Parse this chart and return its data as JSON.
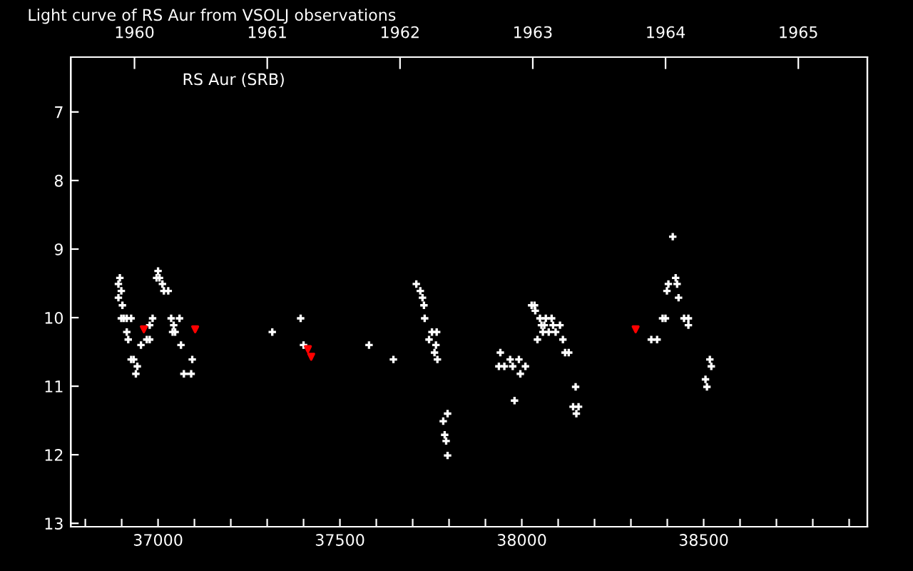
{
  "chart_data": {
    "type": "scatter",
    "title": "Light curve of RS Aur from VSOLJ observations",
    "annotations": [
      "RS Aur (SRB)"
    ],
    "xlim": [
      36760,
      38950
    ],
    "xticks": [
      {
        "value": 36800,
        "label": null
      },
      {
        "value": 36900,
        "label": null
      },
      37000,
      {
        "value": 37100,
        "label": null
      },
      {
        "value": 37200,
        "label": null
      },
      {
        "value": 37300,
        "label": null
      },
      {
        "value": 37400,
        "label": null
      },
      37500,
      {
        "value": 37600,
        "label": null
      },
      {
        "value": 37700,
        "label": null
      },
      {
        "value": 37800,
        "label": null
      },
      {
        "value": 37900,
        "label": null
      },
      38000,
      {
        "value": 38100,
        "label": null
      },
      {
        "value": 38200,
        "label": null
      },
      {
        "value": 38300,
        "label": null
      },
      {
        "value": 38400,
        "label": null
      },
      38500,
      {
        "value": 38600,
        "label": null
      },
      {
        "value": 38700,
        "label": null
      },
      {
        "value": 38800,
        "label": null
      },
      {
        "value": 38900,
        "label": null
      }
    ],
    "x2lim": [
      1959.52,
      1965.52
    ],
    "x2ticks": [
      1960,
      1961,
      1962,
      1963,
      1964,
      1965
    ],
    "ylim": [
      13.05,
      6.2
    ],
    "yticks": [
      7,
      8,
      9,
      10,
      11,
      12,
      13
    ],
    "grid": false,
    "series": [
      {
        "color": "#ffffff",
        "marker": "cross",
        "x": [
          36895,
          36891,
          36899,
          36891,
          36902,
          36899,
          36906,
          36914,
          36926,
          36914,
          36918,
          36926,
          36933,
          36943,
          36939,
          36953,
          36969,
          36977,
          36977,
          36985,
          37000,
          36996,
          37004,
          37012,
          37016,
          37028,
          37036,
          37059,
          37043,
          37040,
          37047,
          37063,
          37094,
          37071,
          37091,
          37392,
          37314,
          37400,
          37580,
          37647,
          37710,
          37721,
          37727,
          37731,
          37733,
          37753,
          37766,
          37745,
          37764,
          37760,
          37768,
          37796,
          37784,
          37788,
          37792,
          37796,
          38027,
          38035,
          38037,
          38050,
          38066,
          38082,
          38054,
          38062,
          38086,
          38105,
          38058,
          38074,
          38093,
          38043,
          38113,
          38119,
          38129,
          37941,
          37937,
          37952,
          37968,
          37992,
          37975,
          38010,
          37996,
          37980,
          38148,
          38141,
          38156,
          38150,
          38356,
          38372,
          38387,
          38395,
          38399,
          38403,
          38423,
          38427,
          38431,
          38415,
          38446,
          38458,
          38458,
          38517,
          38521,
          38505,
          38509
        ],
        "values": [
          9.42,
          9.51,
          9.61,
          9.71,
          9.82,
          10.01,
          10.01,
          10.01,
          10.01,
          10.21,
          10.32,
          10.61,
          10.61,
          10.71,
          10.82,
          10.4,
          10.32,
          10.32,
          10.11,
          10.01,
          9.32,
          9.42,
          9.42,
          9.51,
          9.61,
          9.61,
          10.01,
          10.01,
          10.11,
          10.21,
          10.21,
          10.4,
          10.61,
          10.82,
          10.82,
          10.01,
          10.21,
          10.4,
          10.4,
          10.61,
          9.51,
          9.61,
          9.71,
          9.82,
          10.01,
          10.21,
          10.21,
          10.32,
          10.4,
          10.51,
          10.61,
          11.4,
          11.51,
          11.71,
          11.8,
          12.01,
          9.82,
          9.82,
          9.9,
          10.01,
          10.01,
          10.01,
          10.11,
          10.11,
          10.11,
          10.11,
          10.21,
          10.21,
          10.21,
          10.32,
          10.32,
          10.51,
          10.51,
          10.51,
          10.71,
          10.71,
          10.61,
          10.61,
          10.71,
          10.71,
          10.82,
          11.21,
          11.01,
          11.3,
          11.3,
          11.4,
          10.32,
          10.32,
          10.01,
          10.01,
          9.61,
          9.51,
          9.42,
          9.51,
          9.71,
          8.82,
          10.01,
          10.01,
          10.11,
          10.61,
          10.71,
          10.9,
          11.01
        ]
      },
      {
        "color": "#ff0000",
        "marker": "triangle",
        "x": [
          36961,
          37102,
          37412,
          37421,
          38313
        ],
        "values": [
          10.17,
          10.17,
          10.46,
          10.57,
          10.17
        ]
      }
    ]
  }
}
